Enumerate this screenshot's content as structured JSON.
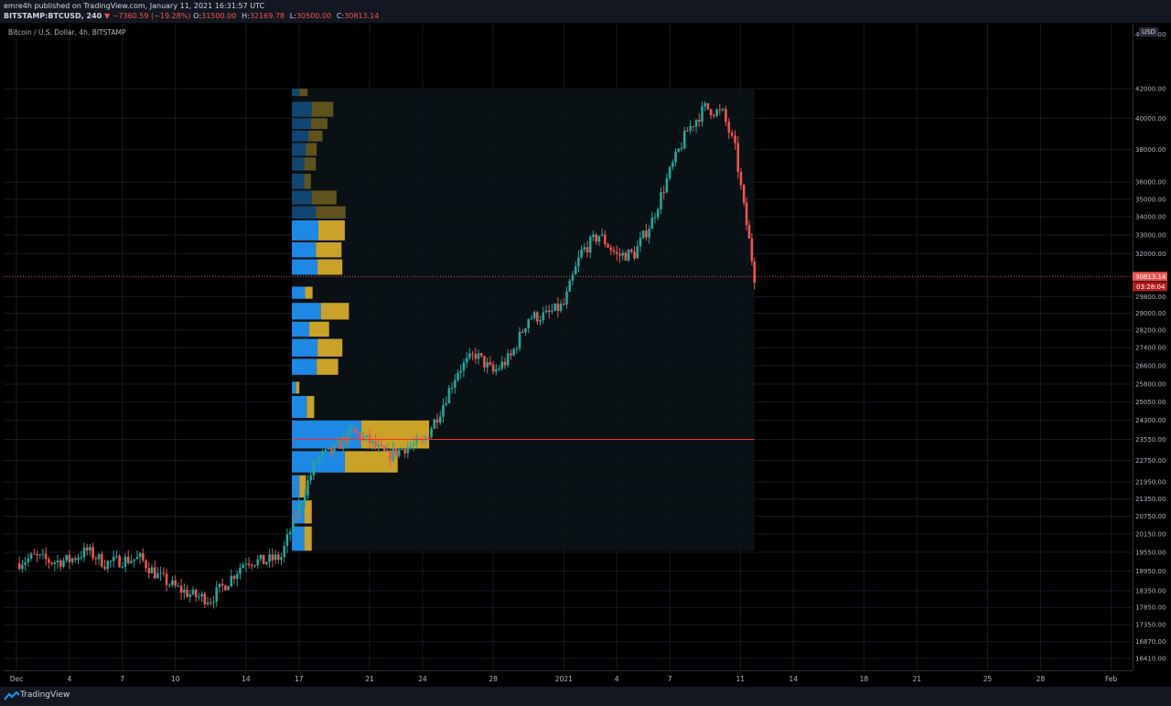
{
  "header": {
    "published": "emre4h published on TradingView.com, January 11, 2021 16:31:57 UTC",
    "symbol": "BITSTAMP:BTCUSD, 240",
    "change": "▼ −7360.59 (−19.28%)",
    "ohlc": [
      {
        "k": "O:",
        "v": "31500.00"
      },
      {
        "k": "H:",
        "v": "32169.78"
      },
      {
        "k": "L:",
        "v": "30500.00"
      },
      {
        "k": "C:",
        "v": "30813.14"
      }
    ]
  },
  "chart_title": "Bitcoin / U.S. Dollar, 4h, BITSTAMP",
  "currency_badge": "USD",
  "footer": {
    "brand": "TradingView"
  },
  "colors": {
    "up": "#26a69a",
    "down": "#ef5350",
    "vp_up": "#1e88e5",
    "vp_down": "#c9a227",
    "poc": "#ff2b2b",
    "last_price": "#ef5350"
  },
  "chart_data": {
    "type": "candlestick",
    "title": "Bitcoin / U.S. Dollar, 4h, BITSTAMP",
    "price_axis": {
      "scale": "log",
      "ticks": [
        42000,
        40000,
        38000,
        36000,
        35000,
        34000,
        33000,
        32000,
        29800,
        29000,
        28200,
        27400,
        26600,
        25800,
        25050,
        24300,
        23550,
        22750,
        21950,
        21350,
        20750,
        20150,
        19550,
        18950,
        18350,
        17850,
        17350,
        16870,
        16410
      ],
      "tick_labels": [
        "42000.00",
        "40000.00",
        "38000.00",
        "36000.00",
        "35000.00",
        "34000.00",
        "33000.00",
        "32000.00",
        "29800.00",
        "29000.00",
        "28200.00",
        "27400.00",
        "26600.00",
        "25800.00",
        "25050.00",
        "24300.00",
        "23550.00",
        "22750.00",
        "21950.00",
        "21350.00",
        "20750.00",
        "20150.00",
        "19550.00",
        "18950.00",
        "18350.00",
        "17850.00",
        "17350.00",
        "16870.00",
        "16410.00"
      ],
      "top_label": "44000.00"
    },
    "time_axis": {
      "labels": [
        "Dec",
        "4",
        "7",
        "10",
        "14",
        "17",
        "21",
        "24",
        "28",
        "2021",
        "4",
        "7",
        "11",
        "14",
        "18",
        "21",
        "25",
        "28",
        "Feb"
      ],
      "positions_day": [
        0,
        3,
        6,
        9,
        13,
        16,
        20,
        23,
        27,
        31,
        34,
        37,
        41,
        44,
        48,
        51,
        55,
        58,
        62
      ]
    },
    "last_price": {
      "value": 30813.14,
      "label": "30813.14",
      "countdown": "03:28:04"
    },
    "poc_price": 23550,
    "volume_profile": {
      "range_days": [
        15.6,
        41.8
      ],
      "rows": [
        {
          "low": 41500,
          "high": 42000,
          "up": 0.9,
          "down": 1.0
        },
        {
          "low": 40100,
          "high": 41100,
          "up": 2.4,
          "down": 2.6
        },
        {
          "low": 39300,
          "high": 40000,
          "up": 2.3,
          "down": 2.0
        },
        {
          "low": 38500,
          "high": 39200,
          "up": 2.0,
          "down": 1.7
        },
        {
          "low": 37600,
          "high": 38400,
          "up": 1.7,
          "down": 1.3
        },
        {
          "low": 36700,
          "high": 37500,
          "up": 1.5,
          "down": 1.4
        },
        {
          "low": 35600,
          "high": 36500,
          "up": 1.5,
          "down": 0.8
        },
        {
          "low": 34700,
          "high": 35500,
          "up": 2.4,
          "down": 3.0
        },
        {
          "low": 33900,
          "high": 34600,
          "up": 2.9,
          "down": 3.6
        },
        {
          "low": 32700,
          "high": 33800,
          "up": 3.2,
          "down": 3.2
        },
        {
          "low": 31800,
          "high": 32600,
          "up": 2.9,
          "down": 3.1
        },
        {
          "low": 30900,
          "high": 31700,
          "up": 3.1,
          "down": 3.0
        },
        {
          "low": 29700,
          "high": 30300,
          "up": 1.6,
          "down": 0.9
        },
        {
          "low": 28700,
          "high": 29500,
          "up": 3.5,
          "down": 3.4
        },
        {
          "low": 27900,
          "high": 28600,
          "up": 2.1,
          "down": 2.4
        },
        {
          "low": 27000,
          "high": 27800,
          "up": 3.1,
          "down": 3.0
        },
        {
          "low": 26200,
          "high": 26900,
          "up": 3.0,
          "down": 2.6
        },
        {
          "low": 25400,
          "high": 25900,
          "up": 0.5,
          "down": 0.4
        },
        {
          "low": 24400,
          "high": 25300,
          "up": 1.8,
          "down": 0.9
        },
        {
          "low": 23200,
          "high": 24300,
          "up": 8.4,
          "down": 8.2
        },
        {
          "low": 22300,
          "high": 23100,
          "up": 6.4,
          "down": 6.4
        },
        {
          "low": 21400,
          "high": 22200,
          "up": 0.9,
          "down": 0.8
        },
        {
          "low": 20500,
          "high": 21300,
          "up": 1.5,
          "down": 0.9
        },
        {
          "low": 19600,
          "high": 20400,
          "up": 1.5,
          "down": 0.9
        }
      ]
    },
    "daily_closes": [
      {
        "day": 0,
        "price": 19200
      },
      {
        "day": 1,
        "price": 19400
      },
      {
        "day": 2,
        "price": 19250
      },
      {
        "day": 3,
        "price": 19300
      },
      {
        "day": 4,
        "price": 19600
      },
      {
        "day": 5,
        "price": 19200
      },
      {
        "day": 6,
        "price": 19300
      },
      {
        "day": 7,
        "price": 19350
      },
      {
        "day": 8,
        "price": 18800
      },
      {
        "day": 9,
        "price": 18450
      },
      {
        "day": 10,
        "price": 18200
      },
      {
        "day": 11,
        "price": 18100
      },
      {
        "day": 12,
        "price": 18650
      },
      {
        "day": 13,
        "price": 19300
      },
      {
        "day": 14,
        "price": 19250
      },
      {
        "day": 15,
        "price": 19400
      },
      {
        "day": 16,
        "price": 21100
      },
      {
        "day": 17,
        "price": 22800
      },
      {
        "day": 18,
        "price": 23150
      },
      {
        "day": 19,
        "price": 23850
      },
      {
        "day": 20,
        "price": 23450
      },
      {
        "day": 21,
        "price": 22900
      },
      {
        "day": 22,
        "price": 23250
      },
      {
        "day": 23,
        "price": 23400
      },
      {
        "day": 24,
        "price": 24700
      },
      {
        "day": 25,
        "price": 26400
      },
      {
        "day": 26,
        "price": 27100
      },
      {
        "day": 27,
        "price": 26300
      },
      {
        "day": 28,
        "price": 27000
      },
      {
        "day": 29,
        "price": 28800
      },
      {
        "day": 30,
        "price": 28900
      },
      {
        "day": 31,
        "price": 29400
      },
      {
        "day": 32,
        "price": 32100
      },
      {
        "day": 33,
        "price": 33000
      },
      {
        "day": 34,
        "price": 31900
      },
      {
        "day": 35,
        "price": 32000
      },
      {
        "day": 36,
        "price": 33800
      },
      {
        "day": 37,
        "price": 36600
      },
      {
        "day": 38,
        "price": 39200
      },
      {
        "day": 39,
        "price": 40700
      },
      {
        "day": 40,
        "price": 40300
      },
      {
        "day": 40.7,
        "price": 38000
      },
      {
        "day": 41.2,
        "price": 34500
      },
      {
        "day": 41.8,
        "price": 30813
      }
    ]
  }
}
